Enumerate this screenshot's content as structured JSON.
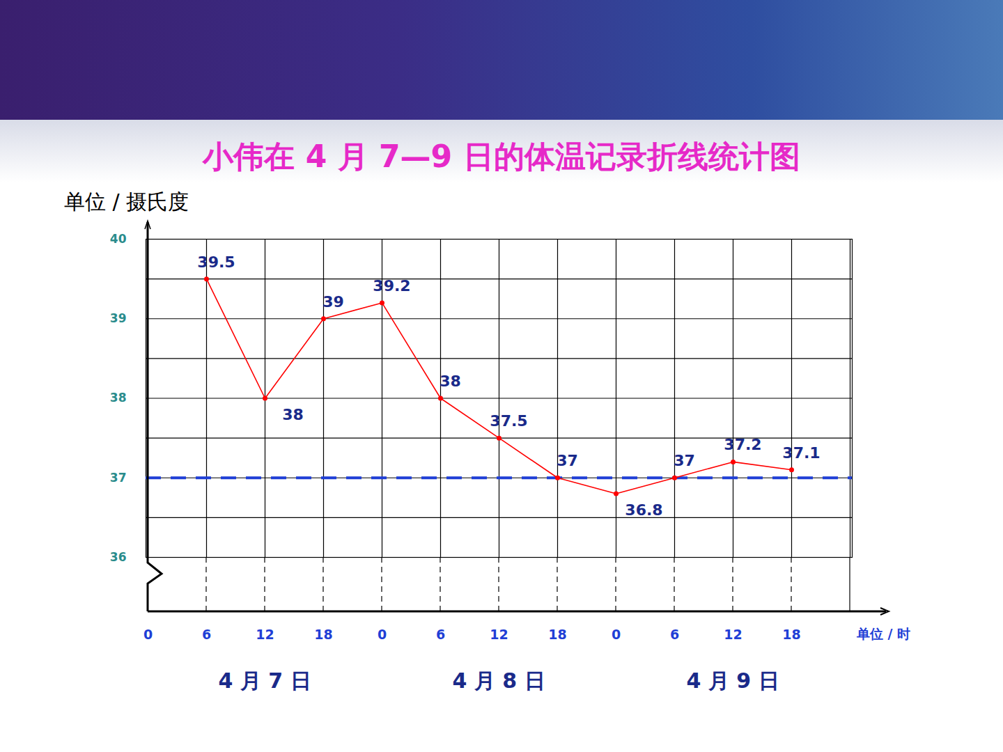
{
  "chart_data": {
    "type": "line",
    "title": "小伟在 4 月 7—9 日的体温记录折线统计图",
    "y_label": "单位 / 摄氏度",
    "x_label": "单位 / 时",
    "categories": [
      "0",
      "6",
      "12",
      "18",
      "0",
      "6",
      "12",
      "18",
      "0",
      "6",
      "12",
      "18",
      null
    ],
    "values": [
      null,
      39.5,
      38,
      39,
      39.2,
      38,
      37.5,
      37,
      36.8,
      37,
      37.2,
      37.1,
      null
    ],
    "color": "#ff0000",
    "marker": "circle",
    "data_labels": true,
    "ylim": [
      36,
      40
    ],
    "yticks": [
      36,
      37,
      38,
      39,
      40
    ],
    "minor_yticks": [
      36.5,
      37.5,
      38.5,
      39.5
    ],
    "grid": true,
    "reference_line": {
      "value": 37,
      "color": "#1f3fd6",
      "line_style": "dashed"
    },
    "date_labels": [
      "4 月 7 日",
      "4 月 8 日",
      "4 月 9 日"
    ]
  }
}
